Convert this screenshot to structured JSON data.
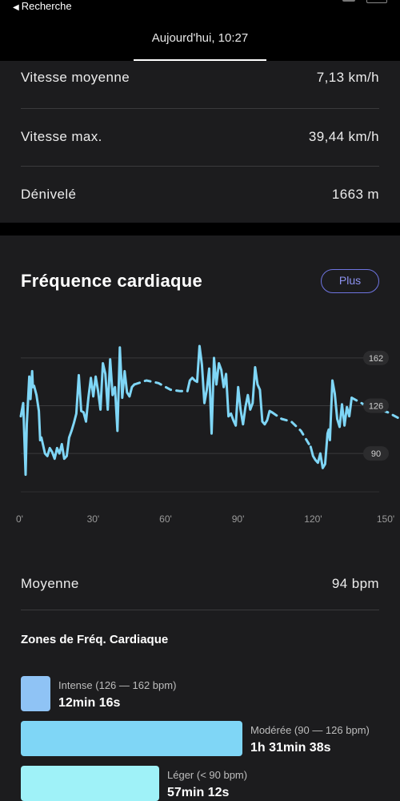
{
  "status_bar": {
    "back_label": "Recherche"
  },
  "header": {
    "title": "Aujourd'hui, 10:27"
  },
  "stats": [
    {
      "label": "Vitesse moyenne",
      "value": "7,13 km/h"
    },
    {
      "label": "Vitesse max.",
      "value": "39,44 km/h"
    },
    {
      "label": "Dénivelé",
      "value": "1663 m"
    }
  ],
  "heart_rate": {
    "title": "Fréquence cardiaque",
    "more_label": "Plus",
    "average_label": "Moyenne",
    "average_value": "94 bpm",
    "zones_title": "Zones de Fréq. Cardiaque",
    "zones": [
      {
        "label": "Intense (126 — 162 bpm)",
        "time": "12min 16s",
        "color": "#8fc3f5",
        "seconds": 736
      },
      {
        "label": "Modérée (90 — 126 bpm)",
        "time": "1h 31min 38s",
        "color": "#7fd6f6",
        "seconds": 5498
      },
      {
        "label": "Léger (< 90 bpm)",
        "time": "57min 12s",
        "color": "#9ff2f8",
        "seconds": 3432
      }
    ]
  },
  "chart_data": {
    "type": "line",
    "x_unit": "minutes",
    "x_ticks": [
      "0'",
      "30'",
      "60'",
      "90'",
      "120'",
      "150'"
    ],
    "x_tick_values": [
      0,
      30,
      60,
      90,
      120,
      150
    ],
    "y_ticks": [
      "162",
      "126",
      "90"
    ],
    "y_tick_values": [
      162,
      126,
      90
    ],
    "ylim": [
      55,
      200
    ],
    "xlim": [
      0,
      157
    ],
    "line_color": "#7fd6f6",
    "grid": true,
    "segments": [
      {
        "style": "solid",
        "x": [
          0,
          1,
          2,
          2.5,
          3.5,
          4,
          4.7,
          5,
          5.5,
          6.5,
          7.5,
          8,
          8.5,
          10,
          11,
          12,
          13,
          14,
          15,
          16,
          17,
          18,
          19,
          20,
          21,
          22,
          23,
          24,
          25,
          26,
          27,
          28,
          29,
          30,
          31,
          32,
          33,
          34,
          35,
          36,
          37,
          38,
          39,
          40,
          41,
          42,
          43,
          44,
          45,
          46,
          47
        ],
        "y": [
          118,
          128,
          74,
          112,
          148,
          131,
          152,
          140,
          141,
          134,
          122,
          100,
          102,
          90,
          88,
          94,
          91,
          86,
          94,
          90,
          97,
          86,
          88,
          102,
          107,
          113,
          120,
          149,
          122,
          121,
          114,
          132,
          147,
          133,
          148,
          137,
          123,
          158,
          150,
          123,
          161,
          134,
          140,
          107,
          170,
          132,
          152,
          136,
          133,
          140,
          142
        ]
      },
      {
        "style": "dashed",
        "x": [
          47,
          52,
          57,
          62,
          66,
          69
        ],
        "y": [
          142,
          145,
          143,
          138,
          137,
          137
        ]
      },
      {
        "style": "solid",
        "x": [
          69,
          70,
          71,
          72,
          73,
          74,
          75,
          76,
          77,
          78,
          79,
          80,
          81,
          82,
          83,
          84,
          85,
          86,
          87,
          88,
          89,
          90,
          91,
          92,
          93,
          94,
          95,
          96,
          97,
          98,
          99,
          100,
          101,
          102,
          103,
          104
        ],
        "y": [
          137,
          145,
          147,
          145,
          144,
          171,
          157,
          128,
          138,
          154,
          105,
          162,
          142,
          158,
          153,
          140,
          150,
          118,
          120,
          115,
          111,
          140,
          123,
          112,
          125,
          134,
          123,
          128,
          155,
          142,
          138,
          114,
          112,
          115,
          122,
          121
        ]
      },
      {
        "style": "dashed",
        "x": [
          104,
          108,
          112,
          116,
          120
        ],
        "y": [
          121,
          116,
          114,
          107,
          95
        ]
      },
      {
        "style": "solid",
        "x": [
          120,
          121,
          122,
          123,
          124,
          125,
          126,
          127,
          127.5,
          128,
          129,
          130,
          131,
          132,
          133,
          134,
          135,
          136,
          137
        ],
        "y": [
          95,
          88,
          85,
          83,
          90,
          79,
          82,
          105,
          108,
          100,
          145,
          135,
          116,
          110,
          127,
          111,
          125,
          118,
          132
        ]
      },
      {
        "style": "dashed",
        "x": [
          137,
          142,
          147,
          152,
          157
        ],
        "y": [
          132,
          127,
          124,
          121,
          116
        ]
      }
    ]
  }
}
